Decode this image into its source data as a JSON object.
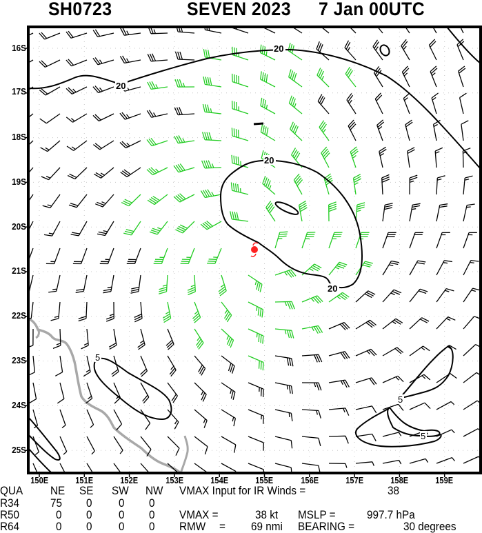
{
  "header": {
    "storm_id": "SH0723",
    "storm_name_year": "SEVEN 2023",
    "datetime": "7 Jan 00UTC"
  },
  "map": {
    "lat_labels": [
      "16S",
      "17S",
      "18S",
      "19S",
      "20S",
      "21S",
      "22S",
      "23S",
      "24S",
      "25S"
    ],
    "lon_labels": [
      "150E",
      "151E",
      "152E",
      "153E",
      "154E",
      "155E",
      "156E",
      "157E",
      "158E",
      "159E"
    ],
    "contour_labels": [
      "20",
      "20",
      "20",
      "20",
      "5",
      "5",
      "5"
    ],
    "colors": {
      "barb_low": "#000000",
      "barb_34kt": "#22cc22",
      "barb_50kt": "#e8a030",
      "coastline": "#a0a0a0",
      "storm_symbol": "#ff2020",
      "grid": "#c8c8c8"
    },
    "storm_center_icon": "tropical-cyclone-icon"
  },
  "table": {
    "headers": [
      "QUA",
      "NE",
      "SE",
      "SW",
      "NW"
    ],
    "rows": [
      {
        "label": "R34",
        "values": [
          "75",
          "0",
          "0",
          "0"
        ]
      },
      {
        "label": "R50",
        "values": [
          "0",
          "0",
          "0",
          "0"
        ]
      },
      {
        "label": "R64",
        "values": [
          "0",
          "0",
          "0",
          "0"
        ]
      }
    ]
  },
  "summary": {
    "vmax_input_label": "VMAX Input for IR Winds =",
    "vmax_input_value": "38",
    "vmax_label": "VMAX =",
    "vmax_value": "38 kt",
    "mslp_label": "MSLP =",
    "mslp_value": "997.7 hPa",
    "rmw_label": "RMW",
    "rmw_eq": "=",
    "rmw_value": "69 nmi",
    "bearing_label": "BEARING =",
    "bearing_value": "30 degrees"
  }
}
